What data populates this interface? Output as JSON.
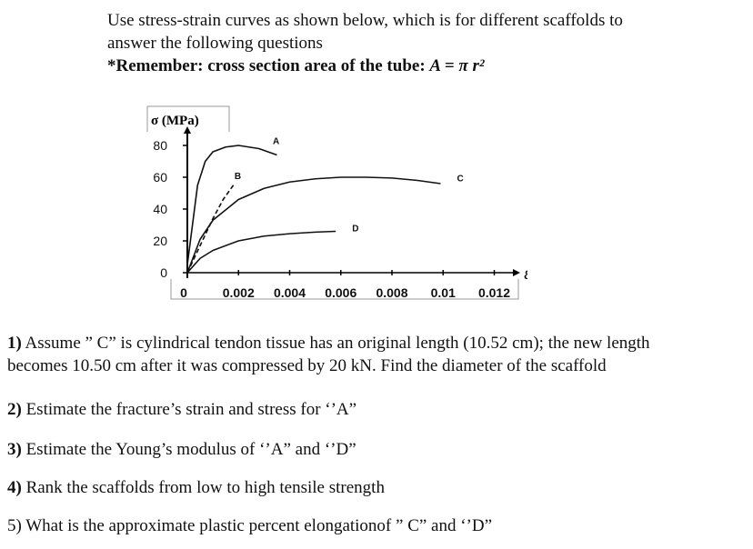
{
  "intro": {
    "line1": "Use stress-strain curves as shown below, which is for different scaffolds to",
    "line2": "answer the following questions",
    "remember_prefix": "*Remember:   cross section area of the tube: ",
    "formula": "A = π r²"
  },
  "chart_data": {
    "type": "line",
    "ylabel": "σ (MPa)",
    "xlabel": "ε",
    "y_ticks": [
      "80",
      "60",
      "40",
      "20",
      "0"
    ],
    "y_tick_values": [
      80,
      60,
      40,
      20,
      0
    ],
    "x_ticks": [
      "0",
      "0.002",
      "0.004",
      "0.006",
      "0.008",
      "0.01",
      "0.012"
    ],
    "x_tick_values": [
      0,
      0.002,
      0.004,
      0.006,
      0.008,
      0.01,
      0.012
    ],
    "xlim": [
      0,
      0.0128
    ],
    "ylim": [
      0,
      84
    ],
    "series": [
      {
        "name": "A",
        "x": [
          0,
          0.0002,
          0.0004,
          0.0007,
          0.001,
          0.0015,
          0.002,
          0.0028,
          0.0035
        ],
        "y": [
          5,
          30,
          55,
          70,
          76,
          79,
          80,
          78,
          74
        ]
      },
      {
        "name": "B",
        "x": [
          0,
          0.0005,
          0.001,
          0.0014,
          0.0018
        ],
        "y": [
          0,
          17,
          34,
          46,
          55
        ]
      },
      {
        "name": "C",
        "x": [
          0,
          0.0005,
          0.001,
          0.002,
          0.003,
          0.004,
          0.005,
          0.006,
          0.007,
          0.008,
          0.009,
          0.0099
        ],
        "y": [
          0,
          21,
          33,
          46,
          53,
          57,
          59,
          60,
          60,
          59.5,
          58,
          56
        ]
      },
      {
        "name": "D",
        "x": [
          0,
          0.0005,
          0.001,
          0.002,
          0.003,
          0.004,
          0.005,
          0.0058
        ],
        "y": [
          0,
          9,
          14,
          20,
          23,
          24.5,
          25.5,
          26
        ]
      }
    ]
  },
  "questions": {
    "q1_num": "1)",
    "q1_line1": " Assume ” C” is cylindrical tendon tissue has an original length (10.52 cm); the new length",
    "q1_line2": "becomes 10.50 cm after it was compressed by 20 kN.   Find the diameter of the scaffold",
    "q2_num": "2)",
    "q2_text": " Estimate the fracture’s strain and stress for ‘’A”",
    "q3_num": "3)",
    "q3_text": " Estimate the Young’s modulus of  ‘’A”  and ‘’D”",
    "q4_num": "4)",
    "q4_text": " Rank the scaffolds from low to high tensile strength",
    "q5_text": "5) What is the approximate plastic percent elongationof ” C”  and ‘’D”"
  }
}
